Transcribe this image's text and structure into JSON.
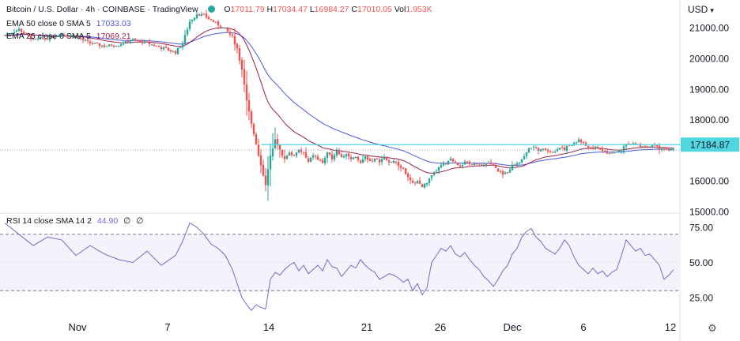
{
  "header": {
    "symbol_title": "Bitcoin / U.S. Dollar · 4h · COINBASE · TradingView",
    "ohlc": [
      {
        "k": "O",
        "v": "17011.79"
      },
      {
        "k": "H",
        "v": "17034.47"
      },
      {
        "k": "L",
        "v": "16984.27"
      },
      {
        "k": "C",
        "v": "17010.05"
      },
      {
        "k": "Vol",
        "v": "1.953K"
      }
    ],
    "currency": "USD"
  },
  "indicators": {
    "ema50": {
      "label": "EMA 50 close 0 SMA 5",
      "value": "17033.03",
      "color": "#4a5ae0"
    },
    "ema25": {
      "label": "EMA 25 close 0 SMA 5",
      "value": "17069.21",
      "color": "#9c1f4a"
    },
    "rsi": {
      "label": "RSI 14 close SMA 14 2",
      "value": "44.90",
      "extra1": "∅",
      "extra2": "∅",
      "color": "#6f6bc5"
    }
  },
  "colors": {
    "up": "#26a69a",
    "down": "#ef5350",
    "last_price_tag": "#4fd6e0",
    "rsi_line": "#6f6bc5"
  },
  "chart_data": [
    {
      "type": "candlestick",
      "timeframe": "4h",
      "x_tick_labels": [
        "Nov",
        "7",
        "14",
        "21",
        "26",
        "Dec",
        "6",
        "12"
      ],
      "y_tick_labels": [
        "21000.00",
        "20000.00",
        "19000.00",
        "18000.00",
        "16000.00",
        "15000.00"
      ],
      "ylim": [
        15000,
        21700
      ],
      "last_price": "17184.87",
      "approx_close_path": [
        [
          0,
          20750
        ],
        [
          6,
          20950
        ],
        [
          12,
          20600
        ],
        [
          18,
          20650
        ],
        [
          24,
          20800
        ],
        [
          30,
          20700
        ],
        [
          36,
          20500
        ],
        [
          42,
          20400
        ],
        [
          48,
          20450
        ],
        [
          54,
          20600
        ],
        [
          60,
          20500
        ],
        [
          66,
          20350
        ],
        [
          72,
          20200
        ],
        [
          75,
          20500
        ],
        [
          78,
          21200
        ],
        [
          81,
          21450
        ],
        [
          84,
          21400
        ],
        [
          87,
          21250
        ],
        [
          90,
          21100
        ],
        [
          93,
          20950
        ],
        [
          96,
          20700
        ],
        [
          98,
          20300
        ],
        [
          100,
          19600
        ],
        [
          102,
          18600
        ],
        [
          104,
          17900
        ],
        [
          106,
          17200
        ],
        [
          108,
          16500
        ],
        [
          110,
          15900
        ],
        [
          112,
          16800
        ],
        [
          114,
          17400
        ],
        [
          116,
          17000
        ],
        [
          118,
          16700
        ],
        [
          120,
          16950
        ],
        [
          122,
          16800
        ],
        [
          124,
          17000
        ],
        [
          126,
          16900
        ],
        [
          128,
          16600
        ],
        [
          130,
          16850
        ],
        [
          132,
          16700
        ],
        [
          134,
          16600
        ],
        [
          136,
          16900
        ],
        [
          138,
          16750
        ],
        [
          140,
          17000
        ],
        [
          142,
          16800
        ],
        [
          144,
          16900
        ],
        [
          146,
          16700
        ],
        [
          148,
          16750
        ],
        [
          150,
          16600
        ],
        [
          152,
          16800
        ],
        [
          154,
          16650
        ],
        [
          156,
          16700
        ],
        [
          158,
          16650
        ],
        [
          160,
          16750
        ],
        [
          162,
          16600
        ],
        [
          164,
          16650
        ],
        [
          166,
          16500
        ],
        [
          168,
          16400
        ],
        [
          170,
          16100
        ],
        [
          172,
          15900
        ],
        [
          174,
          16000
        ],
        [
          176,
          15800
        ],
        [
          178,
          15950
        ],
        [
          180,
          16150
        ],
        [
          182,
          16350
        ],
        [
          184,
          16500
        ],
        [
          186,
          16550
        ],
        [
          188,
          16700
        ],
        [
          190,
          16600
        ],
        [
          192,
          16500
        ],
        [
          194,
          16600
        ],
        [
          196,
          16550
        ],
        [
          198,
          16600
        ],
        [
          200,
          16500
        ],
        [
          202,
          16550
        ],
        [
          204,
          16600
        ],
        [
          206,
          16500
        ],
        [
          208,
          16300
        ],
        [
          210,
          16200
        ],
        [
          212,
          16300
        ],
        [
          214,
          16500
        ],
        [
          216,
          16600
        ],
        [
          218,
          16700
        ],
        [
          220,
          16950
        ],
        [
          222,
          17100
        ],
        [
          224,
          17050
        ],
        [
          226,
          17000
        ],
        [
          228,
          17050
        ],
        [
          230,
          16950
        ],
        [
          232,
          17000
        ],
        [
          234,
          17100
        ],
        [
          236,
          17050
        ],
        [
          238,
          17150
        ],
        [
          240,
          17200
        ],
        [
          242,
          17350
        ],
        [
          244,
          17200
        ],
        [
          246,
          17100
        ],
        [
          248,
          17050
        ],
        [
          250,
          17100
        ],
        [
          252,
          17000
        ],
        [
          254,
          16900
        ],
        [
          256,
          16900
        ],
        [
          258,
          16950
        ],
        [
          260,
          17000
        ],
        [
          262,
          17250
        ],
        [
          264,
          17200
        ],
        [
          266,
          17200
        ],
        [
          268,
          17150
        ],
        [
          270,
          17150
        ],
        [
          272,
          17100
        ],
        [
          274,
          17150
        ],
        [
          276,
          17050
        ],
        [
          278,
          17000
        ],
        [
          280,
          17030
        ],
        [
          282,
          17010
        ]
      ]
    },
    {
      "type": "line",
      "series": [
        {
          "name": "RSI 14 close SMA 14 2",
          "last": 44.9
        }
      ],
      "y_tick_labels": [
        "75.00",
        "50.00",
        "25.00"
      ],
      "bands": [
        70,
        30
      ],
      "ylim": [
        15,
        85
      ],
      "approx_values": [
        [
          0,
          78
        ],
        [
          6,
          70
        ],
        [
          12,
          62
        ],
        [
          18,
          68
        ],
        [
          24,
          66
        ],
        [
          30,
          55
        ],
        [
          36,
          62
        ],
        [
          42,
          56
        ],
        [
          48,
          52
        ],
        [
          54,
          50
        ],
        [
          60,
          58
        ],
        [
          66,
          48
        ],
        [
          72,
          55
        ],
        [
          75,
          65
        ],
        [
          78,
          78
        ],
        [
          81,
          75
        ],
        [
          84,
          70
        ],
        [
          87,
          63
        ],
        [
          90,
          60
        ],
        [
          93,
          55
        ],
        [
          96,
          45
        ],
        [
          98,
          35
        ],
        [
          100,
          25
        ],
        [
          102,
          20
        ],
        [
          104,
          16
        ],
        [
          106,
          20
        ],
        [
          108,
          18
        ],
        [
          110,
          17
        ],
        [
          112,
          38
        ],
        [
          114,
          43
        ],
        [
          116,
          41
        ],
        [
          118,
          45
        ],
        [
          120,
          48
        ],
        [
          122,
          50
        ],
        [
          124,
          44
        ],
        [
          126,
          48
        ],
        [
          128,
          42
        ],
        [
          130,
          45
        ],
        [
          132,
          48
        ],
        [
          134,
          44
        ],
        [
          136,
          52
        ],
        [
          138,
          47
        ],
        [
          140,
          46
        ],
        [
          142,
          40
        ],
        [
          144,
          44
        ],
        [
          146,
          48
        ],
        [
          148,
          46
        ],
        [
          150,
          52
        ],
        [
          152,
          48
        ],
        [
          154,
          45
        ],
        [
          156,
          43
        ],
        [
          158,
          38
        ],
        [
          160,
          40
        ],
        [
          162,
          42
        ],
        [
          164,
          41
        ],
        [
          166,
          39
        ],
        [
          168,
          36
        ],
        [
          170,
          38
        ],
        [
          172,
          30
        ],
        [
          174,
          35
        ],
        [
          176,
          27
        ],
        [
          178,
          32
        ],
        [
          180,
          50
        ],
        [
          182,
          55
        ],
        [
          184,
          60
        ],
        [
          186,
          58
        ],
        [
          188,
          62
        ],
        [
          190,
          56
        ],
        [
          192,
          54
        ],
        [
          194,
          57
        ],
        [
          196,
          52
        ],
        [
          198,
          48
        ],
        [
          200,
          45
        ],
        [
          202,
          40
        ],
        [
          204,
          37
        ],
        [
          206,
          33
        ],
        [
          208,
          38
        ],
        [
          210,
          44
        ],
        [
          212,
          48
        ],
        [
          214,
          56
        ],
        [
          216,
          60
        ],
        [
          218,
          68
        ],
        [
          220,
          72
        ],
        [
          222,
          74
        ],
        [
          224,
          68
        ],
        [
          226,
          65
        ],
        [
          228,
          60
        ],
        [
          230,
          58
        ],
        [
          232,
          56
        ],
        [
          234,
          60
        ],
        [
          236,
          66
        ],
        [
          238,
          62
        ],
        [
          240,
          54
        ],
        [
          242,
          48
        ],
        [
          244,
          45
        ],
        [
          246,
          42
        ],
        [
          248,
          46
        ],
        [
          250,
          42
        ],
        [
          252,
          44
        ],
        [
          254,
          40
        ],
        [
          256,
          43
        ],
        [
          258,
          45
        ],
        [
          260,
          55
        ],
        [
          262,
          66
        ],
        [
          264,
          62
        ],
        [
          266,
          58
        ],
        [
          268,
          60
        ],
        [
          270,
          55
        ],
        [
          272,
          56
        ],
        [
          274,
          52
        ],
        [
          276,
          48
        ],
        [
          278,
          38
        ],
        [
          280,
          41
        ],
        [
          282,
          44.9
        ]
      ]
    }
  ]
}
